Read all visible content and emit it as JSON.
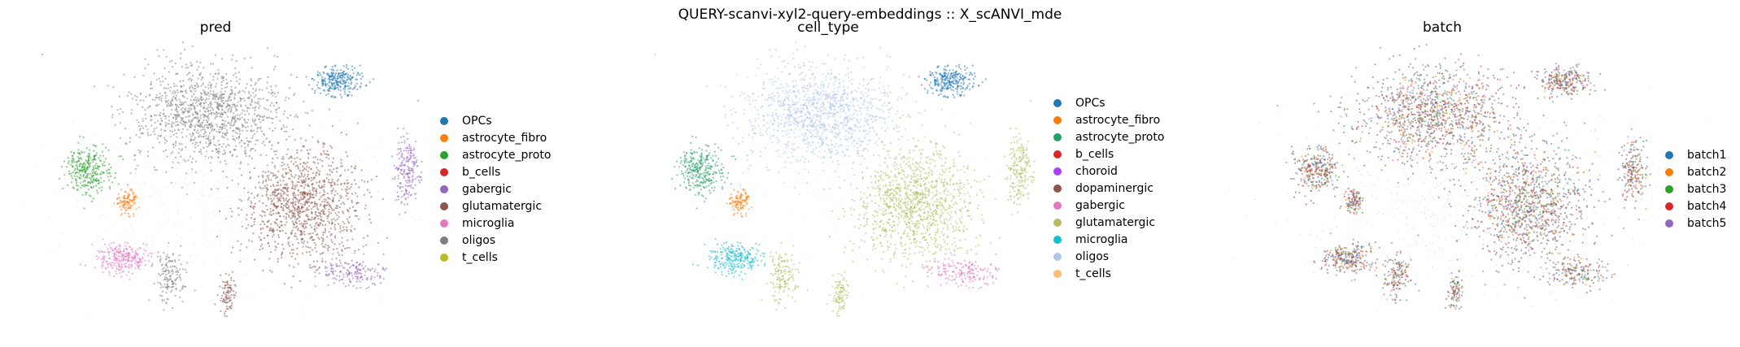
{
  "suptitle": "QUERY-scanvi-xyl2-query-embeddings :: X_scANVI_mde",
  "chart_data": [
    {
      "type": "scatter",
      "title": "pred",
      "categories": [
        "OPCs",
        "astrocyte_fibro",
        "astrocyte_proto",
        "b_cells",
        "gabergic",
        "glutamatergic",
        "microglia",
        "oligos",
        "t_cells"
      ],
      "colors": [
        "#1f77b4",
        "#ff7f0e",
        "#2ca02c",
        "#d62728",
        "#9467bd",
        "#8c564b",
        "#e377c2",
        "#7f7f7f",
        "#bcbd22"
      ],
      "legend_position": "right",
      "grid": false
    },
    {
      "type": "scatter",
      "title": "cell_type",
      "categories": [
        "OPCs",
        "astrocyte_fibro",
        "astrocyte_proto",
        "b_cells",
        "choroid",
        "dopaminergic",
        "gabergic",
        "glutamatergic",
        "microglia",
        "oligos",
        "t_cells"
      ],
      "colors": [
        "#1f77b4",
        "#ff7f0e",
        "#279e68",
        "#d62728",
        "#aa40fc",
        "#8c564b",
        "#e377c2",
        "#b5bd61",
        "#17becf",
        "#aec7e8",
        "#ffbb78"
      ],
      "legend_position": "right",
      "grid": false
    },
    {
      "type": "scatter",
      "title": "batch",
      "categories": [
        "batch1",
        "batch2",
        "batch3",
        "batch4",
        "batch5"
      ],
      "colors": [
        "#1f77b4",
        "#ff7f0e",
        "#2ca02c",
        "#d62728",
        "#9467bd"
      ],
      "legend_position": "right",
      "grid": false
    }
  ]
}
